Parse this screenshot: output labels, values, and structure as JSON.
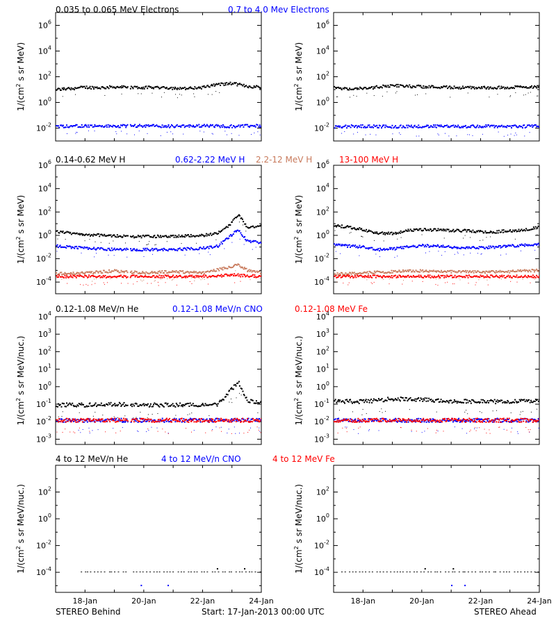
{
  "colors": {
    "black": "#000000",
    "blue": "#0000ff",
    "tan": "#c87a5c",
    "red": "#ff0000"
  },
  "footer": {
    "left": "STEREO Behind",
    "center": "Start: 17-Jan-2013 00:00 UTC",
    "right": "STEREO Ahead"
  },
  "chart_data": [
    {
      "type": "scatter",
      "row": 1,
      "spacecraft": "STEREO Behind",
      "ylabel": "1/(cm2 s sr MeV)",
      "ylog": true,
      "ylim_exp": [
        -3,
        7
      ],
      "ytick_exps": [
        -2,
        0,
        2,
        4,
        6
      ],
      "xlim_days": [
        0,
        7.0
      ],
      "xticks": [
        "18-Jan",
        "20-Jan",
        "22-Jan",
        "24-Jan"
      ],
      "legend": [
        {
          "label": "0.035 to 0.065 MeV Electrons",
          "color": "#000000"
        },
        {
          "label": "0.7 to 4.0 Mev Electrons",
          "color": "#0000ff"
        }
      ],
      "series": [
        {
          "name": "0.035 to 0.065 MeV Electrons",
          "color": "#000000",
          "x": [
            0,
            0.5,
            1.0,
            1.5,
            2.0,
            2.5,
            3.0,
            3.5,
            4.0,
            4.5,
            5.0,
            5.5,
            6.0,
            6.5,
            7.0
          ],
          "y": [
            10,
            12,
            15,
            14,
            16,
            15,
            14,
            15,
            13,
            12,
            15,
            25,
            30,
            18,
            15
          ]
        },
        {
          "name": "0.7 to 4.0 Mev Electrons",
          "color": "#0000ff",
          "x": [
            0,
            1,
            2,
            3,
            4,
            5,
            6,
            7
          ],
          "y": [
            0.014,
            0.015,
            0.014,
            0.015,
            0.014,
            0.015,
            0.014,
            0.015
          ]
        }
      ]
    },
    {
      "type": "scatter",
      "row": 1,
      "spacecraft": "STEREO Ahead",
      "ylabel": "1/(cm2 s sr MeV)",
      "ylog": true,
      "ylim_exp": [
        -3,
        7
      ],
      "ytick_exps": [
        -2,
        0,
        2,
        4,
        6
      ],
      "xlim_days": [
        0,
        7.0
      ],
      "xticks": [
        "18-Jan",
        "20-Jan",
        "22-Jan",
        "24-Jan"
      ],
      "series": [
        {
          "name": "0.035 to 0.065 MeV Electrons",
          "color": "#000000",
          "x": [
            0,
            0.5,
            1.0,
            1.5,
            2.0,
            2.5,
            3.0,
            3.5,
            4.0,
            4.5,
            5.0,
            5.5,
            6.0,
            6.5,
            7.0
          ],
          "y": [
            13,
            11,
            12,
            16,
            20,
            18,
            17,
            16,
            15,
            14,
            14,
            14,
            15,
            16,
            17
          ]
        },
        {
          "name": "0.7 to 4.0 Mev Electrons",
          "color": "#0000ff",
          "x": [
            0,
            1,
            2,
            3,
            4,
            5,
            6,
            7
          ],
          "y": [
            0.013,
            0.014,
            0.013,
            0.014,
            0.013,
            0.014,
            0.013,
            0.014
          ]
        }
      ]
    },
    {
      "type": "scatter",
      "row": 2,
      "spacecraft": "STEREO Behind",
      "ylabel": "1/(cm2 s sr MeV)",
      "ylog": true,
      "ylim_exp": [
        -5,
        6
      ],
      "ytick_exps": [
        -4,
        -2,
        0,
        2,
        4,
        6
      ],
      "xlim_days": [
        0,
        7.0
      ],
      "xticks": [
        "18-Jan",
        "20-Jan",
        "22-Jan",
        "24-Jan"
      ],
      "legend": [
        {
          "label": "0.14-0.62 MeV H",
          "color": "#000000"
        },
        {
          "label": "0.62-2.22 MeV H",
          "color": "#0000ff"
        },
        {
          "label": "2.2-12 MeV H",
          "color": "#c87a5c"
        },
        {
          "label": "13-100 MeV H",
          "color": "#ff0000"
        }
      ],
      "series": [
        {
          "name": "0.14-0.62 MeV H",
          "color": "#000000",
          "x": [
            0,
            0.5,
            1.0,
            1.5,
            2.0,
            2.5,
            3.0,
            3.5,
            4.0,
            4.5,
            5.0,
            5.5,
            5.9,
            6.2,
            6.5,
            7.0
          ],
          "y": [
            2.0,
            1.5,
            1.2,
            1.0,
            0.9,
            0.8,
            0.8,
            0.8,
            0.8,
            0.9,
            1.0,
            1.5,
            8,
            60,
            5,
            6
          ]
        },
        {
          "name": "0.62-2.22 MeV H",
          "color": "#0000ff",
          "x": [
            0,
            0.5,
            1.0,
            1.5,
            2.0,
            2.5,
            3.0,
            3.5,
            4.0,
            4.5,
            5.0,
            5.5,
            5.9,
            6.2,
            6.5,
            7.0
          ],
          "y": [
            0.12,
            0.1,
            0.08,
            0.07,
            0.06,
            0.06,
            0.06,
            0.06,
            0.06,
            0.07,
            0.08,
            0.12,
            0.8,
            3,
            0.3,
            0.25
          ]
        },
        {
          "name": "2.2-12 MeV H",
          "color": "#c87a5c",
          "x": [
            0,
            1,
            2,
            3,
            4,
            5,
            5.9,
            6.2,
            6.5,
            7.0
          ],
          "y": [
            0.0005,
            0.0006,
            0.0009,
            0.0006,
            0.0008,
            0.0006,
            0.002,
            0.003,
            0.001,
            0.0006
          ]
        },
        {
          "name": "13-100 MeV H",
          "color": "#ff0000",
          "x": [
            0,
            1,
            2,
            3,
            4,
            5,
            6,
            7
          ],
          "y": [
            0.0003,
            0.0003,
            0.0003,
            0.0003,
            0.0003,
            0.0003,
            0.0004,
            0.0003
          ]
        }
      ]
    },
    {
      "type": "scatter",
      "row": 2,
      "spacecraft": "STEREO Ahead",
      "ylabel": "1/(cm2 s sr MeV)",
      "ylog": true,
      "ylim_exp": [
        -5,
        6
      ],
      "ytick_exps": [
        -4,
        -2,
        0,
        2,
        4,
        6
      ],
      "xlim_days": [
        0,
        7.0
      ],
      "xticks": [
        "18-Jan",
        "20-Jan",
        "22-Jan",
        "24-Jan"
      ],
      "series": [
        {
          "name": "0.14-0.62 MeV H",
          "color": "#000000",
          "x": [
            0,
            0.5,
            1.0,
            1.5,
            2.0,
            2.5,
            3.0,
            3.5,
            4.0,
            4.5,
            5.0,
            5.5,
            6.0,
            6.5,
            7.0
          ],
          "y": [
            7,
            5,
            3,
            1.5,
            1.5,
            2.5,
            3,
            3,
            2.5,
            2.5,
            2,
            2,
            2.5,
            3,
            5
          ]
        },
        {
          "name": "0.62-2.22 MeV H",
          "color": "#0000ff",
          "x": [
            0,
            0.5,
            1.0,
            1.5,
            2.0,
            2.5,
            3.0,
            3.5,
            4.0,
            4.5,
            5.0,
            5.5,
            6.0,
            6.5,
            7.0
          ],
          "y": [
            0.15,
            0.12,
            0.1,
            0.06,
            0.07,
            0.1,
            0.13,
            0.12,
            0.1,
            0.09,
            0.09,
            0.1,
            0.12,
            0.15,
            0.18
          ]
        },
        {
          "name": "2.2-12 MeV H",
          "color": "#c87a5c",
          "x": [
            0,
            1,
            2,
            3,
            4,
            5,
            6,
            7
          ],
          "y": [
            0.0005,
            0.0006,
            0.0008,
            0.0009,
            0.0008,
            0.0007,
            0.0008,
            0.001
          ]
        },
        {
          "name": "13-100 MeV H",
          "color": "#ff0000",
          "x": [
            0,
            1,
            2,
            3,
            4,
            5,
            6,
            7
          ],
          "y": [
            0.0003,
            0.0003,
            0.0003,
            0.0003,
            0.0003,
            0.0003,
            0.0003,
            0.0003
          ]
        }
      ]
    },
    {
      "type": "scatter",
      "row": 3,
      "spacecraft": "STEREO Behind",
      "ylabel": "1/(cm2 s sr MeV/nuc.)",
      "ylog": true,
      "ylim_exp": [
        -3.3,
        4
      ],
      "ytick_exps": [
        -3,
        -2,
        -1,
        0,
        1,
        2,
        3,
        4
      ],
      "xlim_days": [
        0,
        7.0
      ],
      "xticks": [
        "18-Jan",
        "20-Jan",
        "22-Jan",
        "24-Jan"
      ],
      "legend": [
        {
          "label": "0.12-1.08 MeV/n He",
          "color": "#000000"
        },
        {
          "label": "0.12-1.08 MeV/n CNO",
          "color": "#0000ff"
        },
        {
          "label": "0.12-1.08 MeV Fe",
          "color": "#ff0000"
        }
      ],
      "series": [
        {
          "name": "0.12-1.08 MeV/n He",
          "color": "#000000",
          "x": [
            0,
            1,
            2,
            3,
            4,
            5,
            5.5,
            5.9,
            6.2,
            6.5,
            7.0
          ],
          "y": [
            0.09,
            0.09,
            0.1,
            0.09,
            0.09,
            0.09,
            0.1,
            0.5,
            2,
            0.15,
            0.12
          ]
        },
        {
          "name": "0.12-1.08 MeV/n CNO",
          "color": "#0000ff",
          "x": [
            0,
            1,
            2,
            3,
            4,
            5,
            6,
            7
          ],
          "y": [
            0.012,
            0.012,
            0.012,
            0.012,
            0.012,
            0.012,
            0.012,
            0.012
          ]
        },
        {
          "name": "0.12-1.08 MeV Fe",
          "color": "#ff0000",
          "x": [
            0,
            1,
            2,
            3,
            4,
            5,
            6,
            7
          ],
          "y": [
            0.012,
            0.012,
            0.012,
            0.012,
            0.012,
            0.012,
            0.012,
            0.012
          ]
        }
      ]
    },
    {
      "type": "scatter",
      "row": 3,
      "spacecraft": "STEREO Ahead",
      "ylabel": "1/(cm2 s sr MeV/nuc.)",
      "ylog": true,
      "ylim_exp": [
        -3.3,
        4
      ],
      "ytick_exps": [
        -3,
        -2,
        -1,
        0,
        1,
        2,
        3,
        4
      ],
      "xlim_days": [
        0,
        7.0
      ],
      "xticks": [
        "18-Jan",
        "20-Jan",
        "22-Jan",
        "24-Jan"
      ],
      "series": [
        {
          "name": "0.12-1.08 MeV/n He",
          "color": "#000000",
          "x": [
            0,
            1,
            2,
            3,
            4,
            5,
            6,
            7
          ],
          "y": [
            0.15,
            0.14,
            0.2,
            0.18,
            0.15,
            0.14,
            0.14,
            0.15
          ]
        },
        {
          "name": "0.12-1.08 MeV/n CNO",
          "color": "#0000ff",
          "x": [
            0,
            1,
            2,
            3,
            4,
            5,
            6,
            7
          ],
          "y": [
            0.012,
            0.012,
            0.012,
            0.012,
            0.012,
            0.012,
            0.012,
            0.012
          ]
        },
        {
          "name": "0.12-1.08 MeV Fe",
          "color": "#ff0000",
          "x": [
            0,
            1,
            2,
            3,
            4,
            5,
            6,
            7
          ],
          "y": [
            0.012,
            0.012,
            0.012,
            0.012,
            0.012,
            0.012,
            0.012,
            0.012
          ]
        }
      ]
    },
    {
      "type": "scatter",
      "row": 4,
      "spacecraft": "STEREO Behind",
      "ylabel": "1/(cm2 s sr MeV/nuc.)",
      "ylog": true,
      "ylim_exp": [
        -5.5,
        4
      ],
      "ytick_exps": [
        -4,
        -2,
        0,
        2
      ],
      "xlim_days": [
        0,
        7.0
      ],
      "xticks": [
        "18-Jan",
        "20-Jan",
        "22-Jan",
        "24-Jan"
      ],
      "legend": [
        {
          "label": "4 to 12 MeV/n He",
          "color": "#000000"
        },
        {
          "label": "4 to 12 MeV/n CNO",
          "color": "#0000ff"
        },
        {
          "label": "4 to 12 MeV Fe",
          "color": "#ff0000"
        }
      ],
      "series": [
        {
          "name": "4 to 12 MeV/n He",
          "color": "#000000",
          "x": [
            0.8,
            1.5,
            2.0,
            2.5,
            3.0,
            3.5,
            4.0,
            4.5,
            5.0,
            5.5,
            6.0,
            6.5,
            7.0
          ],
          "y": [
            0.0001,
            0.0001,
            0.0001,
            0.0001,
            0.0001,
            0.0001,
            0.0001,
            0.0001,
            0.0001,
            0.0001,
            0.0001,
            0.0001,
            0.0001
          ]
        }
      ]
    },
    {
      "type": "scatter",
      "row": 4,
      "spacecraft": "STEREO Ahead",
      "ylabel": "1/(cm2 s sr MeV/nuc.)",
      "ylog": true,
      "ylim_exp": [
        -5.5,
        4
      ],
      "ytick_exps": [
        -4,
        -2,
        0,
        2
      ],
      "xlim_days": [
        0,
        7.0
      ],
      "xticks": [
        "18-Jan",
        "20-Jan",
        "22-Jan",
        "24-Jan"
      ],
      "series": [
        {
          "name": "4 to 12 MeV/n He",
          "color": "#000000",
          "x": [
            0.2,
            0.8,
            1.5,
            2.0,
            2.5,
            3.0,
            3.5,
            4.0,
            4.5,
            5.0,
            5.5,
            6.0,
            6.5,
            7.0
          ],
          "y": [
            0.0001,
            0.0001,
            0.0001,
            0.0001,
            0.0001,
            0.0001,
            0.0001,
            0.0001,
            0.0001,
            0.0001,
            0.0001,
            0.0001,
            0.0001,
            0.0001
          ]
        }
      ]
    }
  ]
}
